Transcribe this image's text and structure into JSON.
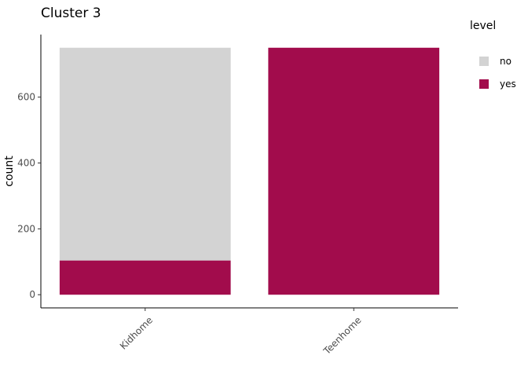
{
  "chart_data": {
    "type": "bar",
    "stacked": true,
    "title": "Cluster 3",
    "xlabel": "",
    "ylabel": "count",
    "categories": [
      "Kidhome",
      "Teenhome"
    ],
    "series": [
      {
        "name": "no",
        "values": [
          646,
          0
        ],
        "color": "#d3d3d3"
      },
      {
        "name": "yes",
        "values": [
          104,
          750
        ],
        "color": "#a20c4c"
      }
    ],
    "ylim": [
      -40,
      790
    ],
    "yticks": [
      0,
      200,
      400,
      600
    ],
    "xtick_rotation": 45,
    "grid": false,
    "legend": {
      "title": "level",
      "position": "right"
    }
  }
}
